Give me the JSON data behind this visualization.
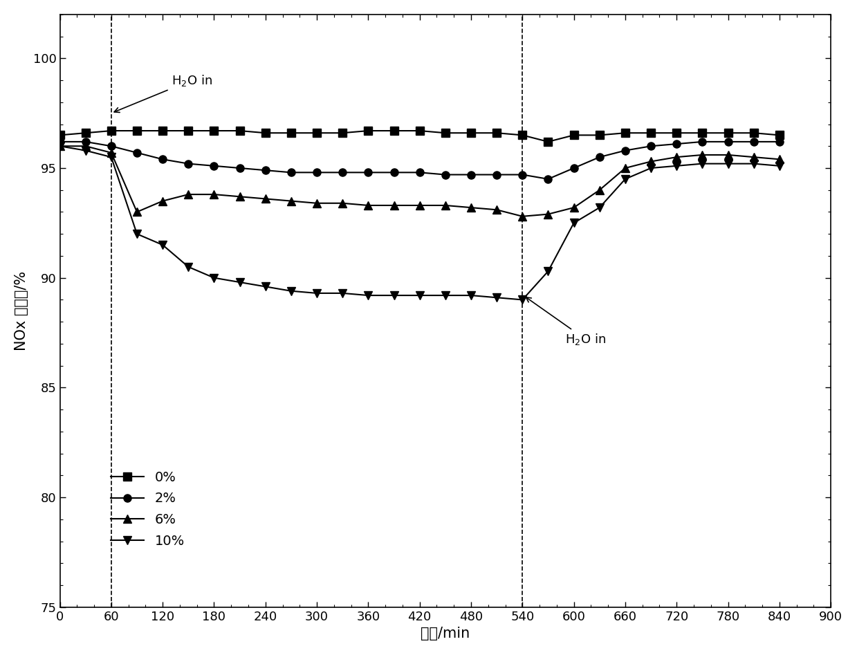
{
  "series": {
    "0%": {
      "x": [
        0,
        30,
        60,
        90,
        120,
        150,
        180,
        210,
        240,
        270,
        300,
        330,
        360,
        390,
        420,
        450,
        480,
        510,
        540,
        570,
        600,
        630,
        660,
        690,
        720,
        750,
        780,
        810,
        840
      ],
      "y": [
        96.5,
        96.6,
        96.7,
        96.7,
        96.7,
        96.7,
        96.7,
        96.7,
        96.6,
        96.6,
        96.6,
        96.6,
        96.7,
        96.7,
        96.7,
        96.6,
        96.6,
        96.6,
        96.5,
        96.2,
        96.5,
        96.5,
        96.6,
        96.6,
        96.6,
        96.6,
        96.6,
        96.6,
        96.5
      ],
      "marker": "s",
      "label": "0%"
    },
    "2%": {
      "x": [
        0,
        30,
        60,
        90,
        120,
        150,
        180,
        210,
        240,
        270,
        300,
        330,
        360,
        390,
        420,
        450,
        480,
        510,
        540,
        570,
        600,
        630,
        660,
        690,
        720,
        750,
        780,
        810,
        840
      ],
      "y": [
        96.2,
        96.2,
        96.0,
        95.7,
        95.4,
        95.2,
        95.1,
        95.0,
        94.9,
        94.8,
        94.8,
        94.8,
        94.8,
        94.8,
        94.8,
        94.7,
        94.7,
        94.7,
        94.7,
        94.5,
        95.0,
        95.5,
        95.8,
        96.0,
        96.1,
        96.2,
        96.2,
        96.2,
        96.2
      ],
      "marker": "o",
      "label": "2%"
    },
    "6%": {
      "x": [
        0,
        30,
        60,
        90,
        120,
        150,
        180,
        210,
        240,
        270,
        300,
        330,
        360,
        390,
        420,
        450,
        480,
        510,
        540,
        570,
        600,
        630,
        660,
        690,
        720,
        750,
        780,
        810,
        840
      ],
      "y": [
        96.0,
        96.0,
        95.7,
        93.0,
        93.5,
        93.8,
        93.8,
        93.7,
        93.6,
        93.5,
        93.4,
        93.4,
        93.3,
        93.3,
        93.3,
        93.3,
        93.2,
        93.1,
        92.8,
        92.9,
        93.2,
        94.0,
        95.0,
        95.3,
        95.5,
        95.6,
        95.6,
        95.5,
        95.4
      ],
      "marker": "^",
      "label": "6%"
    },
    "10%": {
      "x": [
        0,
        30,
        60,
        90,
        120,
        150,
        180,
        210,
        240,
        270,
        300,
        330,
        360,
        390,
        420,
        450,
        480,
        510,
        540,
        570,
        600,
        630,
        660,
        690,
        720,
        750,
        780,
        810,
        840
      ],
      "y": [
        96.0,
        95.8,
        95.5,
        92.0,
        91.5,
        90.5,
        90.0,
        89.8,
        89.6,
        89.4,
        89.3,
        89.3,
        89.2,
        89.2,
        89.2,
        89.2,
        89.2,
        89.1,
        89.0,
        90.3,
        92.5,
        93.2,
        94.5,
        95.0,
        95.1,
        95.2,
        95.2,
        95.2,
        95.1
      ],
      "marker": "v",
      "label": "10%"
    }
  },
  "vlines": [
    60,
    540
  ],
  "xlim": [
    0,
    900
  ],
  "ylim": [
    75,
    102
  ],
  "xticks": [
    0,
    60,
    120,
    180,
    240,
    300,
    360,
    420,
    480,
    540,
    600,
    660,
    720,
    780,
    840,
    900
  ],
  "yticks": [
    75,
    80,
    85,
    90,
    95,
    100
  ],
  "xlabel": "时间/min",
  "ylabel": "NOx 转化率/%",
  "color": "black",
  "linewidth": 1.5,
  "markersize": 8,
  "background_color": "white"
}
